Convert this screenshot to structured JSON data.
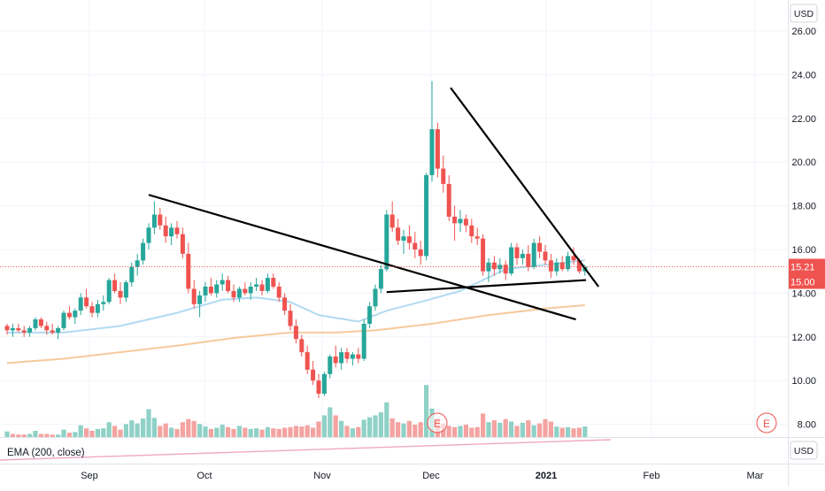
{
  "currency_label": "USD",
  "indicator_label": "EMA (200, close)",
  "price_tags": {
    "last": "15.21",
    "level": "15.00"
  },
  "earnings_marker": "E",
  "colors": {
    "up": "#26a69a",
    "down": "#ef5350",
    "vol_up": "#8fd1c6",
    "vol_down": "#f4a3a0",
    "ema_short": "#a9d6ef",
    "ema_long": "#f5c08a",
    "ema_pane": "#f0a8c6",
    "price_line": "#ef5350"
  },
  "chart_data": {
    "type": "candlestick",
    "title": "",
    "xlabel": "",
    "ylabel": "",
    "x_ticks": [
      "Sep",
      "Oct",
      "Nov",
      "Dec",
      "2021",
      "Feb",
      "Mar"
    ],
    "y_ticks": [
      "26.00",
      "24.00",
      "22.00",
      "20.00",
      "18.00",
      "16.00",
      "14.00",
      "12.00",
      "10.00",
      "8.00"
    ],
    "ylim": [
      7.5,
      26.5
    ],
    "grid": true,
    "last_price": 15.21,
    "level_price": 15.0,
    "candles": [
      [
        12.5,
        12.6,
        12.1,
        12.3
      ],
      [
        12.3,
        12.6,
        12.0,
        12.4
      ],
      [
        12.4,
        12.6,
        12.2,
        12.3
      ],
      [
        12.3,
        12.5,
        12.0,
        12.2
      ],
      [
        12.2,
        12.5,
        12.0,
        12.4
      ],
      [
        12.4,
        12.9,
        12.3,
        12.8
      ],
      [
        12.8,
        12.9,
        12.4,
        12.5
      ],
      [
        12.5,
        12.7,
        12.1,
        12.3
      ],
      [
        12.3,
        12.6,
        12.1,
        12.2
      ],
      [
        12.2,
        12.5,
        11.9,
        12.4
      ],
      [
        12.4,
        13.2,
        12.3,
        13.1
      ],
      [
        13.1,
        13.4,
        12.8,
        12.9
      ],
      [
        12.9,
        13.3,
        12.6,
        13.2
      ],
      [
        13.2,
        14.0,
        13.0,
        13.8
      ],
      [
        13.8,
        14.2,
        13.3,
        13.4
      ],
      [
        13.4,
        13.6,
        12.9,
        13.1
      ],
      [
        13.1,
        13.7,
        12.9,
        13.5
      ],
      [
        13.5,
        13.9,
        13.2,
        13.6
      ],
      [
        13.6,
        14.7,
        13.5,
        14.6
      ],
      [
        14.6,
        14.9,
        14.0,
        14.1
      ],
      [
        14.1,
        14.5,
        13.5,
        13.8
      ],
      [
        13.8,
        14.6,
        13.6,
        14.5
      ],
      [
        14.5,
        15.4,
        14.3,
        15.2
      ],
      [
        15.2,
        15.8,
        14.8,
        15.5
      ],
      [
        15.5,
        16.5,
        15.3,
        16.3
      ],
      [
        16.3,
        17.2,
        16.0,
        17.0
      ],
      [
        17.0,
        18.2,
        16.7,
        17.6
      ],
      [
        17.6,
        17.9,
        16.9,
        17.1
      ],
      [
        17.1,
        17.5,
        16.3,
        16.6
      ],
      [
        16.6,
        17.2,
        16.2,
        17.0
      ],
      [
        17.0,
        17.3,
        16.5,
        16.7
      ],
      [
        16.7,
        17.0,
        15.6,
        15.8
      ],
      [
        15.8,
        16.3,
        14.0,
        14.2
      ],
      [
        14.2,
        14.6,
        13.3,
        13.5
      ],
      [
        13.5,
        14.1,
        12.9,
        13.9
      ],
      [
        13.9,
        14.5,
        13.6,
        14.3
      ],
      [
        14.3,
        14.7,
        13.9,
        14.0
      ],
      [
        14.0,
        14.6,
        13.8,
        14.4
      ],
      [
        14.4,
        14.9,
        14.1,
        14.6
      ],
      [
        14.6,
        14.8,
        14.0,
        14.1
      ],
      [
        14.1,
        14.4,
        13.6,
        13.8
      ],
      [
        13.8,
        14.3,
        13.6,
        14.2
      ],
      [
        14.2,
        14.5,
        13.9,
        14.0
      ],
      [
        14.0,
        14.5,
        13.7,
        14.3
      ],
      [
        14.3,
        14.7,
        14.1,
        14.4
      ],
      [
        14.4,
        14.6,
        13.9,
        14.1
      ],
      [
        14.1,
        14.9,
        14.0,
        14.7
      ],
      [
        14.7,
        14.9,
        14.2,
        14.3
      ],
      [
        14.3,
        14.5,
        13.6,
        13.8
      ],
      [
        13.8,
        14.0,
        13.0,
        13.2
      ],
      [
        13.2,
        13.5,
        12.3,
        12.5
      ],
      [
        12.5,
        12.8,
        11.7,
        11.9
      ],
      [
        11.9,
        12.1,
        11.1,
        11.3
      ],
      [
        11.3,
        11.6,
        10.3,
        10.5
      ],
      [
        10.5,
        10.9,
        9.8,
        10.0
      ],
      [
        10.0,
        10.3,
        9.2,
        9.4
      ],
      [
        9.4,
        10.4,
        9.3,
        10.3
      ],
      [
        10.3,
        11.2,
        10.1,
        11.1
      ],
      [
        11.1,
        11.6,
        10.6,
        10.8
      ],
      [
        10.8,
        11.5,
        10.5,
        11.3
      ],
      [
        11.3,
        11.5,
        10.8,
        11.0
      ],
      [
        11.0,
        11.3,
        10.7,
        11.2
      ],
      [
        11.2,
        11.5,
        10.8,
        11.0
      ],
      [
        11.0,
        12.8,
        10.9,
        12.6
      ],
      [
        12.6,
        13.6,
        12.4,
        13.4
      ],
      [
        13.4,
        14.4,
        13.2,
        14.2
      ],
      [
        14.2,
        15.3,
        14.0,
        15.1
      ],
      [
        15.1,
        17.8,
        15.0,
        17.6
      ],
      [
        17.6,
        18.2,
        16.8,
        17.0
      ],
      [
        17.0,
        17.4,
        16.2,
        16.4
      ],
      [
        16.4,
        16.9,
        15.8,
        16.6
      ],
      [
        16.6,
        17.1,
        16.0,
        16.3
      ],
      [
        16.3,
        16.8,
        15.6,
        16.0
      ],
      [
        16.0,
        16.4,
        15.3,
        15.7
      ],
      [
        15.7,
        19.5,
        15.5,
        19.4
      ],
      [
        19.4,
        23.7,
        19.1,
        21.5
      ],
      [
        21.5,
        21.8,
        19.3,
        19.7
      ],
      [
        19.7,
        20.3,
        18.6,
        19.0
      ],
      [
        19.0,
        19.4,
        17.3,
        17.5
      ],
      [
        17.5,
        18.0,
        16.4,
        17.2
      ],
      [
        17.2,
        17.8,
        16.8,
        17.4
      ],
      [
        17.4,
        17.6,
        16.8,
        17.1
      ],
      [
        17.1,
        17.4,
        16.3,
        16.6
      ],
      [
        16.6,
        17.0,
        16.2,
        16.5
      ],
      [
        16.5,
        16.7,
        14.8,
        15.0
      ],
      [
        15.0,
        15.6,
        14.5,
        15.4
      ],
      [
        15.4,
        15.7,
        14.8,
        15.1
      ],
      [
        15.1,
        15.6,
        14.9,
        15.3
      ],
      [
        15.3,
        15.5,
        14.6,
        14.9
      ],
      [
        14.9,
        16.3,
        14.8,
        16.1
      ],
      [
        16.1,
        16.3,
        15.3,
        15.6
      ],
      [
        15.6,
        16.0,
        15.3,
        15.8
      ],
      [
        15.8,
        16.2,
        15.0,
        15.2
      ],
      [
        15.2,
        16.5,
        15.1,
        16.3
      ],
      [
        16.3,
        16.6,
        15.6,
        15.9
      ],
      [
        15.9,
        16.2,
        15.3,
        15.5
      ],
      [
        15.5,
        15.8,
        14.7,
        15.0
      ],
      [
        15.0,
        15.6,
        14.8,
        15.4
      ],
      [
        15.4,
        15.7,
        15.0,
        15.1
      ],
      [
        15.1,
        15.9,
        15.0,
        15.7
      ],
      [
        15.7,
        16.1,
        15.3,
        15.5
      ],
      [
        15.5,
        15.6,
        14.9,
        15.0
      ],
      [
        15.0,
        15.3,
        14.8,
        15.21
      ]
    ],
    "volume": [
      0.9,
      0.5,
      0.4,
      0.4,
      0.5,
      1.0,
      0.5,
      0.5,
      0.4,
      0.4,
      1.2,
      0.7,
      0.8,
      1.9,
      1.4,
      1.0,
      1.3,
      1.4,
      2.4,
      1.8,
      1.2,
      2.1,
      2.7,
      2.2,
      3.0,
      4.5,
      3.1,
      1.8,
      2.2,
      1.5,
      1.3,
      2.4,
      2.9,
      2.6,
      2.1,
      1.7,
      1.3,
      1.5,
      2.0,
      1.6,
      1.3,
      1.8,
      1.5,
      1.3,
      1.4,
      1.2,
      1.6,
      1.4,
      1.3,
      1.5,
      1.6,
      1.8,
      1.7,
      1.9,
      1.5,
      2.5,
      3.5,
      4.8,
      3.5,
      2.6,
      1.8,
      1.4,
      1.6,
      2.8,
      3.2,
      3.5,
      4.0,
      5.6,
      3.0,
      2.4,
      2.2,
      2.6,
      2.0,
      2.4,
      8.4,
      4.6,
      3.0,
      2.2,
      1.8,
      1.6,
      1.8,
      2.0,
      1.5,
      1.6,
      3.8,
      2.4,
      2.7,
      2.3,
      2.9,
      2.5,
      1.8,
      2.3,
      2.7,
      1.9,
      2.2,
      2.9,
      2.5,
      1.7,
      1.5,
      1.6,
      1.4,
      1.5,
      1.7
    ],
    "vol_up_flags": [
      1,
      0,
      0,
      0,
      1,
      1,
      0,
      0,
      0,
      1,
      1,
      0,
      1,
      1,
      0,
      0,
      1,
      1,
      1,
      0,
      0,
      1,
      1,
      1,
      1,
      1,
      1,
      0,
      0,
      1,
      0,
      0,
      0,
      0,
      1,
      1,
      0,
      1,
      1,
      0,
      0,
      1,
      0,
      1,
      1,
      0,
      1,
      0,
      0,
      0,
      0,
      0,
      0,
      0,
      0,
      0,
      1,
      1,
      0,
      1,
      0,
      1,
      0,
      1,
      1,
      1,
      1,
      1,
      0,
      0,
      1,
      0,
      0,
      0,
      1,
      1,
      0,
      0,
      0,
      0,
      1,
      0,
      0,
      0,
      0,
      1,
      0,
      1,
      0,
      1,
      0,
      1,
      0,
      1,
      0,
      0,
      0,
      1,
      0,
      1,
      0,
      0,
      1
    ],
    "ema_short": [
      [
        0,
        12.2
      ],
      [
        10,
        12.2
      ],
      [
        20,
        12.5
      ],
      [
        30,
        13.1
      ],
      [
        38,
        13.7
      ],
      [
        44,
        13.8
      ],
      [
        50,
        13.6
      ],
      [
        55,
        13.0
      ],
      [
        62,
        12.7
      ],
      [
        67,
        13.2
      ],
      [
        73,
        13.6
      ],
      [
        80,
        14.1
      ],
      [
        88,
        15.1
      ],
      [
        95,
        15.3
      ],
      [
        102,
        15.5
      ]
    ],
    "ema_long": [
      [
        0,
        10.8
      ],
      [
        10,
        11.0
      ],
      [
        20,
        11.3
      ],
      [
        30,
        11.6
      ],
      [
        40,
        11.95
      ],
      [
        50,
        12.2
      ],
      [
        58,
        12.2
      ],
      [
        65,
        12.3
      ],
      [
        75,
        12.6
      ],
      [
        85,
        13.0
      ],
      [
        95,
        13.3
      ],
      [
        102,
        13.45
      ]
    ],
    "annotations": [
      {
        "label": "falling trendline top",
        "from": [
          78.3,
          23.4
        ],
        "to": [
          104.4,
          14.3
        ]
      },
      {
        "label": "falling trendline lower",
        "from": [
          25,
          18.5
        ],
        "to": [
          100.4,
          12.8
        ]
      },
      {
        "label": "support line",
        "from": [
          67,
          14.05
        ],
        "to": [
          102.2,
          14.6
        ]
      }
    ]
  }
}
